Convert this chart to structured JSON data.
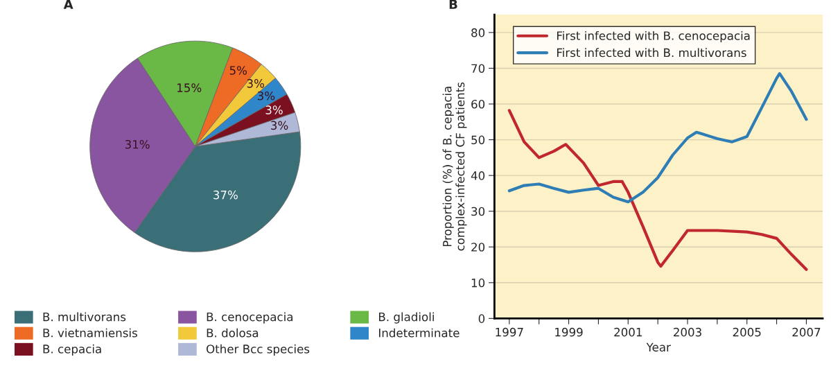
{
  "chart_data": [
    {
      "type": "pie",
      "title": "A",
      "categories": [
        "B. multivorans",
        "B. cenocepacia",
        "B. gladioli",
        "B. vietnamiensis",
        "B. dolosa",
        "Indeterminate",
        "B. cepacia",
        "Other Bcc species"
      ],
      "values": [
        37,
        31,
        15,
        5,
        3,
        3,
        3,
        3
      ],
      "colors": [
        "#3a6f78",
        "#8a55a0",
        "#6ab845",
        "#ee6b25",
        "#f2c93a",
        "#2f86c8",
        "#7b1020",
        "#b0b8d8"
      ],
      "value_labels": [
        "37%",
        "31%",
        "15%",
        "5%",
        "3%",
        "3%",
        "3%",
        "3%"
      ],
      "legend": "bottom"
    },
    {
      "type": "line",
      "title": "B",
      "xlabel": "Year",
      "ylabel": "Proportion (%) of B. cepacia\ncomplex-infected CF patients",
      "xlim": [
        1996.5,
        2007.55
      ],
      "ylim": [
        0,
        85
      ],
      "xticks": [
        1997,
        {
          "value": 1998,
          "label": null
        },
        1999,
        {
          "value": 2000,
          "label": null
        },
        2001,
        {
          "value": 2002,
          "label": null
        },
        2003,
        {
          "value": 2004,
          "label": null
        },
        2005,
        {
          "value": 2006,
          "label": null
        },
        2007
      ],
      "yticks": [
        0,
        10,
        20,
        30,
        40,
        50,
        60,
        70,
        80
      ],
      "grid": "y",
      "legend": "top left",
      "marker": "none",
      "line_style": "solid",
      "series": [
        {
          "name": "First infected with B. cenocepacia",
          "color": "#c0282e",
          "x": [
            1997,
            1997.5,
            1998,
            1998.5,
            1998.9,
            1999.5,
            2000,
            2000.5,
            2000.8,
            2001,
            2001.5,
            2002,
            2002.1,
            2002.5,
            2003,
            2004,
            2005,
            2005.5,
            2006,
            2006.5,
            2007
          ],
          "values": [
            58.2,
            49.4,
            45,
            46.8,
            48.7,
            43.5,
            37.2,
            38.3,
            38.3,
            35.3,
            25.7,
            15.7,
            14.6,
            19,
            24.6,
            24.6,
            24.2,
            23.5,
            22.4,
            17.9,
            13.7
          ]
        },
        {
          "name": "First infected with B. multivorans",
          "color": "#2f7db5",
          "x": [
            1997,
            1997.5,
            1998,
            1998.5,
            1999,
            1999.5,
            2000,
            2000.5,
            2001,
            2001.5,
            2002,
            2002.5,
            2003,
            2003.3,
            2003.5,
            2004,
            2004.5,
            2005,
            2005.5,
            2006,
            2006.1,
            2006.5,
            2007
          ],
          "values": [
            35.7,
            37.2,
            37.6,
            36.4,
            35.3,
            35.9,
            36.4,
            33.9,
            32.6,
            35.3,
            39.4,
            45.7,
            50.5,
            52.1,
            51.6,
            50.3,
            49.4,
            50.9,
            59,
            67.2,
            68.5,
            63.5,
            55.7
          ]
        }
      ]
    }
  ]
}
